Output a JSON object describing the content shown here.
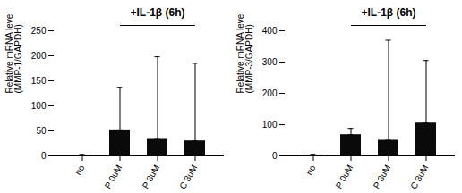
{
  "chart_data": [
    {
      "type": "bar",
      "title": "+IL-1β (6h)",
      "ylabel": "Relative mRNA level\n(MMP-1/GAPDH)",
      "categories": [
        "no",
        "P 0uM",
        "P 3uM",
        "C 3uM"
      ],
      "values": [
        1,
        52,
        33,
        30
      ],
      "errors_lo": [
        0,
        0,
        0,
        0
      ],
      "errors_hi": [
        2,
        85,
        165,
        155
      ],
      "color": "#0a0a0a",
      "ylim": [
        0,
        250
      ],
      "yticks": [
        0,
        50,
        100,
        150,
        200,
        250
      ],
      "bracket": {
        "from": "P 0uM",
        "to": "C 3uM"
      }
    },
    {
      "type": "bar",
      "title": "+IL-1β (6h)",
      "ylabel": "Relative mRNA level\n(MMP-3/GAPDH)",
      "categories": [
        "no",
        "P 0uM",
        "P 3uM",
        "C 3uM"
      ],
      "values": [
        3,
        68,
        50,
        105
      ],
      "errors_lo": [
        0,
        0,
        0,
        0
      ],
      "errors_hi": [
        2,
        20,
        320,
        200
      ],
      "color": "#0a0a0a",
      "ylim": [
        0,
        400
      ],
      "yticks": [
        0,
        100,
        200,
        300,
        400
      ],
      "bracket": {
        "from": "P 0uM",
        "to": "C 3uM"
      }
    }
  ]
}
